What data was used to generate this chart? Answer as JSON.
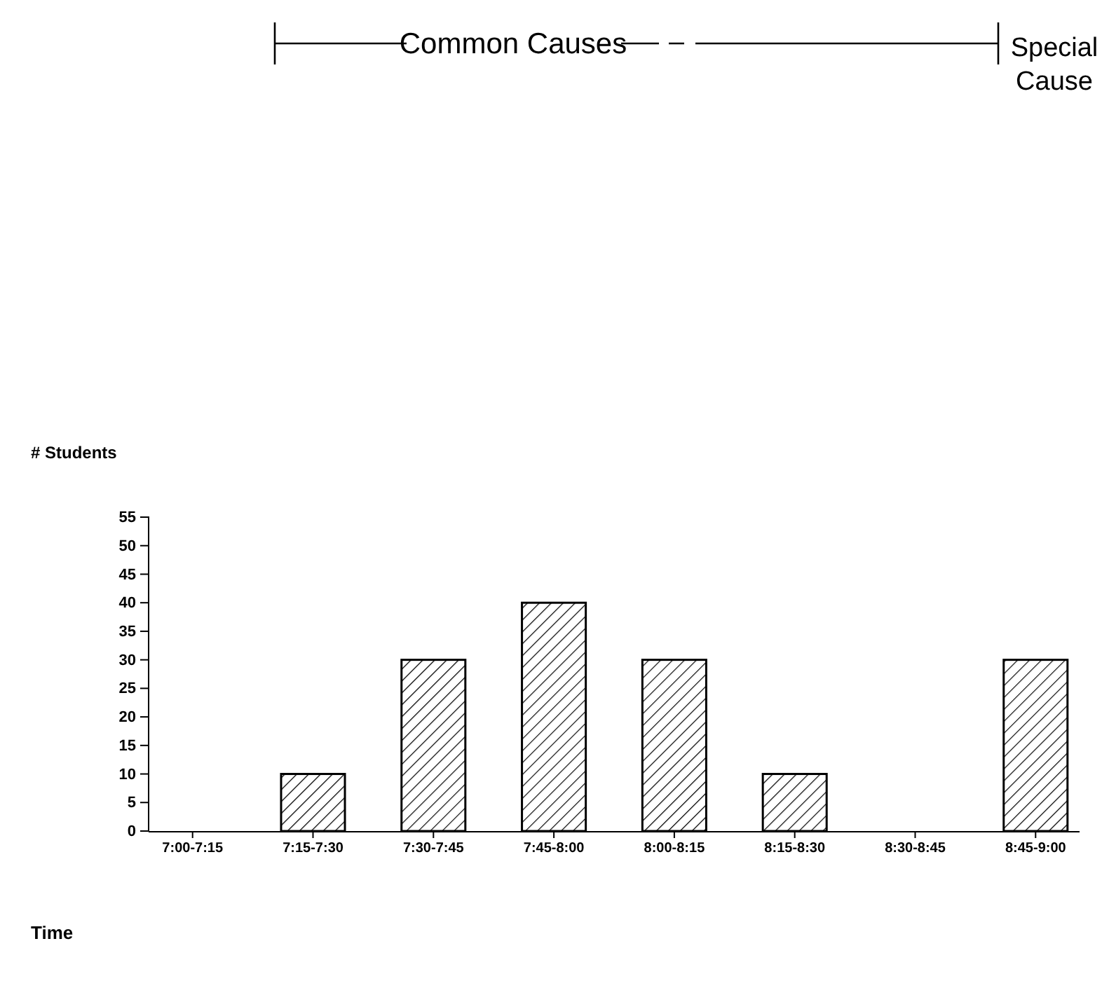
{
  "chart_data": {
    "type": "bar",
    "xlabel": "Time",
    "ylabel": "# Students",
    "categories": [
      "7:00-7:15",
      "7:15-7:30",
      "7:30-7:45",
      "7:45-8:00",
      "8:00-8:15",
      "8:15-8:30",
      "8:30-8:45",
      "8:45-9:00"
    ],
    "values": [
      0,
      10,
      30,
      40,
      30,
      10,
      0,
      30
    ],
    "color": "#000000",
    "ylim": [
      0,
      55
    ],
    "yticks": [
      0,
      5,
      10,
      15,
      20,
      25,
      30,
      35,
      40,
      45,
      50,
      55
    ],
    "grid": false,
    "annotations": [
      "Common Causes",
      "Special Cause"
    ]
  }
}
